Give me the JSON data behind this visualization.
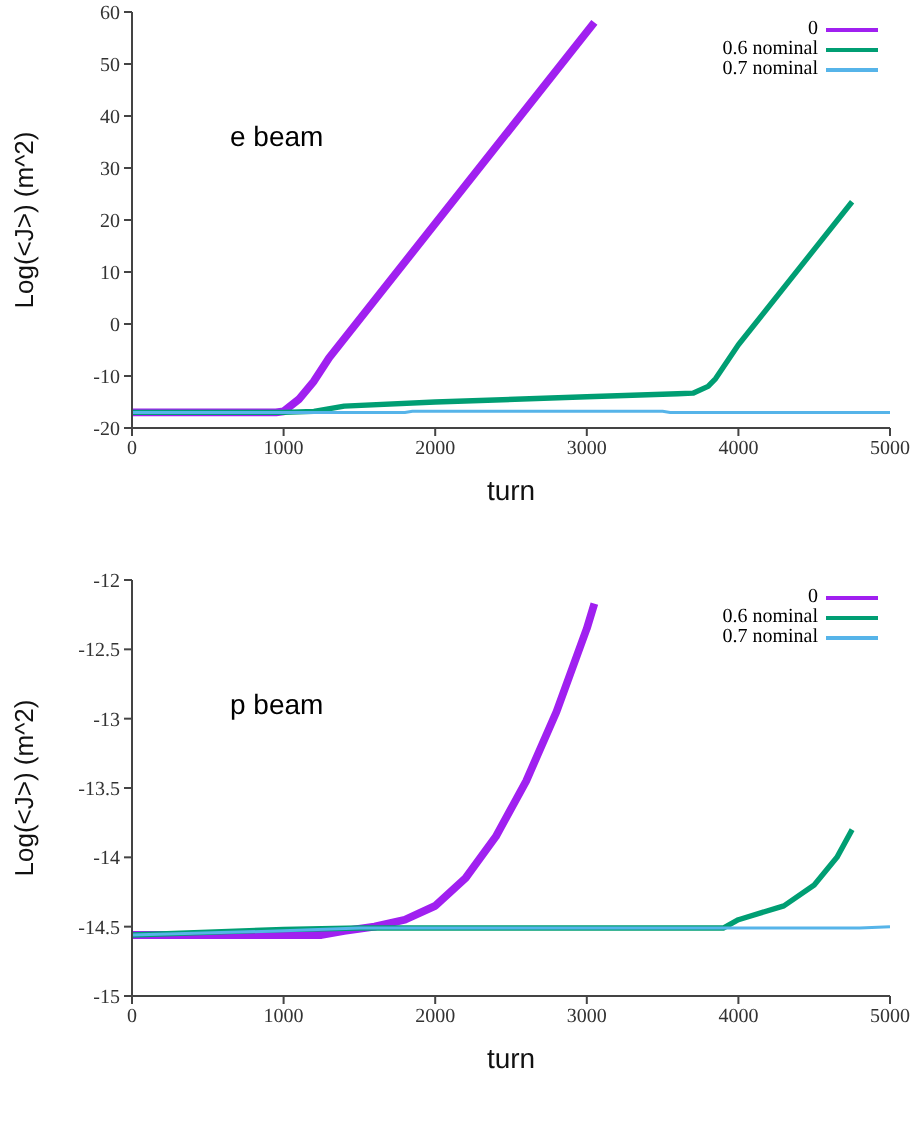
{
  "chart_data": [
    {
      "type": "line",
      "xlabel": "turn",
      "ylabel": "Log(<J>) (m^2)",
      "annotations": [
        "e beam"
      ],
      "xlim": [
        0,
        5000
      ],
      "xticks": [
        0,
        1000,
        2000,
        3000,
        4000,
        5000
      ],
      "ylim": [
        -20,
        60
      ],
      "yticks": [
        -20,
        -10,
        0,
        10,
        20,
        30,
        40,
        50,
        60
      ],
      "grid": false,
      "legend": "top right",
      "line_style": "solid",
      "marker": "none",
      "series": [
        {
          "name": "0",
          "color": "#a020f0",
          "x": [
            0,
            950,
            1000,
            1100,
            1200,
            1300,
            3050
          ],
          "values": [
            -17,
            -17,
            -16.8,
            -14.5,
            -11,
            -6.5,
            58
          ]
        },
        {
          "name": "0.6 nominal",
          "color": "#009e73",
          "x": [
            0,
            1000,
            1200,
            1400,
            2000,
            3000,
            3600,
            3700,
            3800,
            3850,
            4000,
            4750
          ],
          "values": [
            -17,
            -17,
            -16.8,
            -15.8,
            -15,
            -14,
            -13.4,
            -13.3,
            -12,
            -10.5,
            -4,
            23.5
          ]
        },
        {
          "name": "0.7 nominal",
          "color": "#56b4e9",
          "x": [
            0,
            1800,
            1850,
            3500,
            3550,
            5000
          ],
          "values": [
            -17,
            -17,
            -16.8,
            -16.8,
            -17,
            -17
          ]
        }
      ]
    },
    {
      "type": "line",
      "xlabel": "turn",
      "ylabel": "Log(<J>) (m^2)",
      "annotations": [
        "p beam"
      ],
      "xlim": [
        0,
        5000
      ],
      "xticks": [
        0,
        1000,
        2000,
        3000,
        4000,
        5000
      ],
      "ylim": [
        -15,
        -12
      ],
      "yticks": [
        -15,
        {
          "value": -14.5,
          "label": "-14.5"
        },
        -14,
        {
          "value": -13.5,
          "label": "-13.5"
        },
        -13,
        {
          "value": -12.5,
          "label": "-12.5"
        },
        -12
      ],
      "grid": false,
      "legend": "top right",
      "line_style": "solid",
      "marker": "none",
      "series": [
        {
          "name": "0",
          "color": "#a020f0",
          "x": [
            0,
            1250,
            1400,
            1600,
            1800,
            2000,
            2200,
            2400,
            2600,
            2800,
            3000,
            3050
          ],
          "values": [
            -14.56,
            -14.56,
            -14.53,
            -14.5,
            -14.45,
            -14.35,
            -14.15,
            -13.85,
            -13.45,
            -12.95,
            -12.35,
            -12.17
          ]
        },
        {
          "name": "0.6 nominal",
          "color": "#009e73",
          "x": [
            0,
            1000,
            1500,
            3900,
            4000,
            4300,
            4500,
            4650,
            4750
          ],
          "values": [
            -14.56,
            -14.52,
            -14.51,
            -14.51,
            -14.45,
            -14.35,
            -14.2,
            -14,
            -13.8
          ]
        },
        {
          "name": "0.7 nominal",
          "color": "#56b4e9",
          "x": [
            0,
            1000,
            1500,
            4800,
            5000
          ],
          "values": [
            -14.56,
            -14.53,
            -14.51,
            -14.51,
            -14.5
          ]
        }
      ]
    }
  ]
}
